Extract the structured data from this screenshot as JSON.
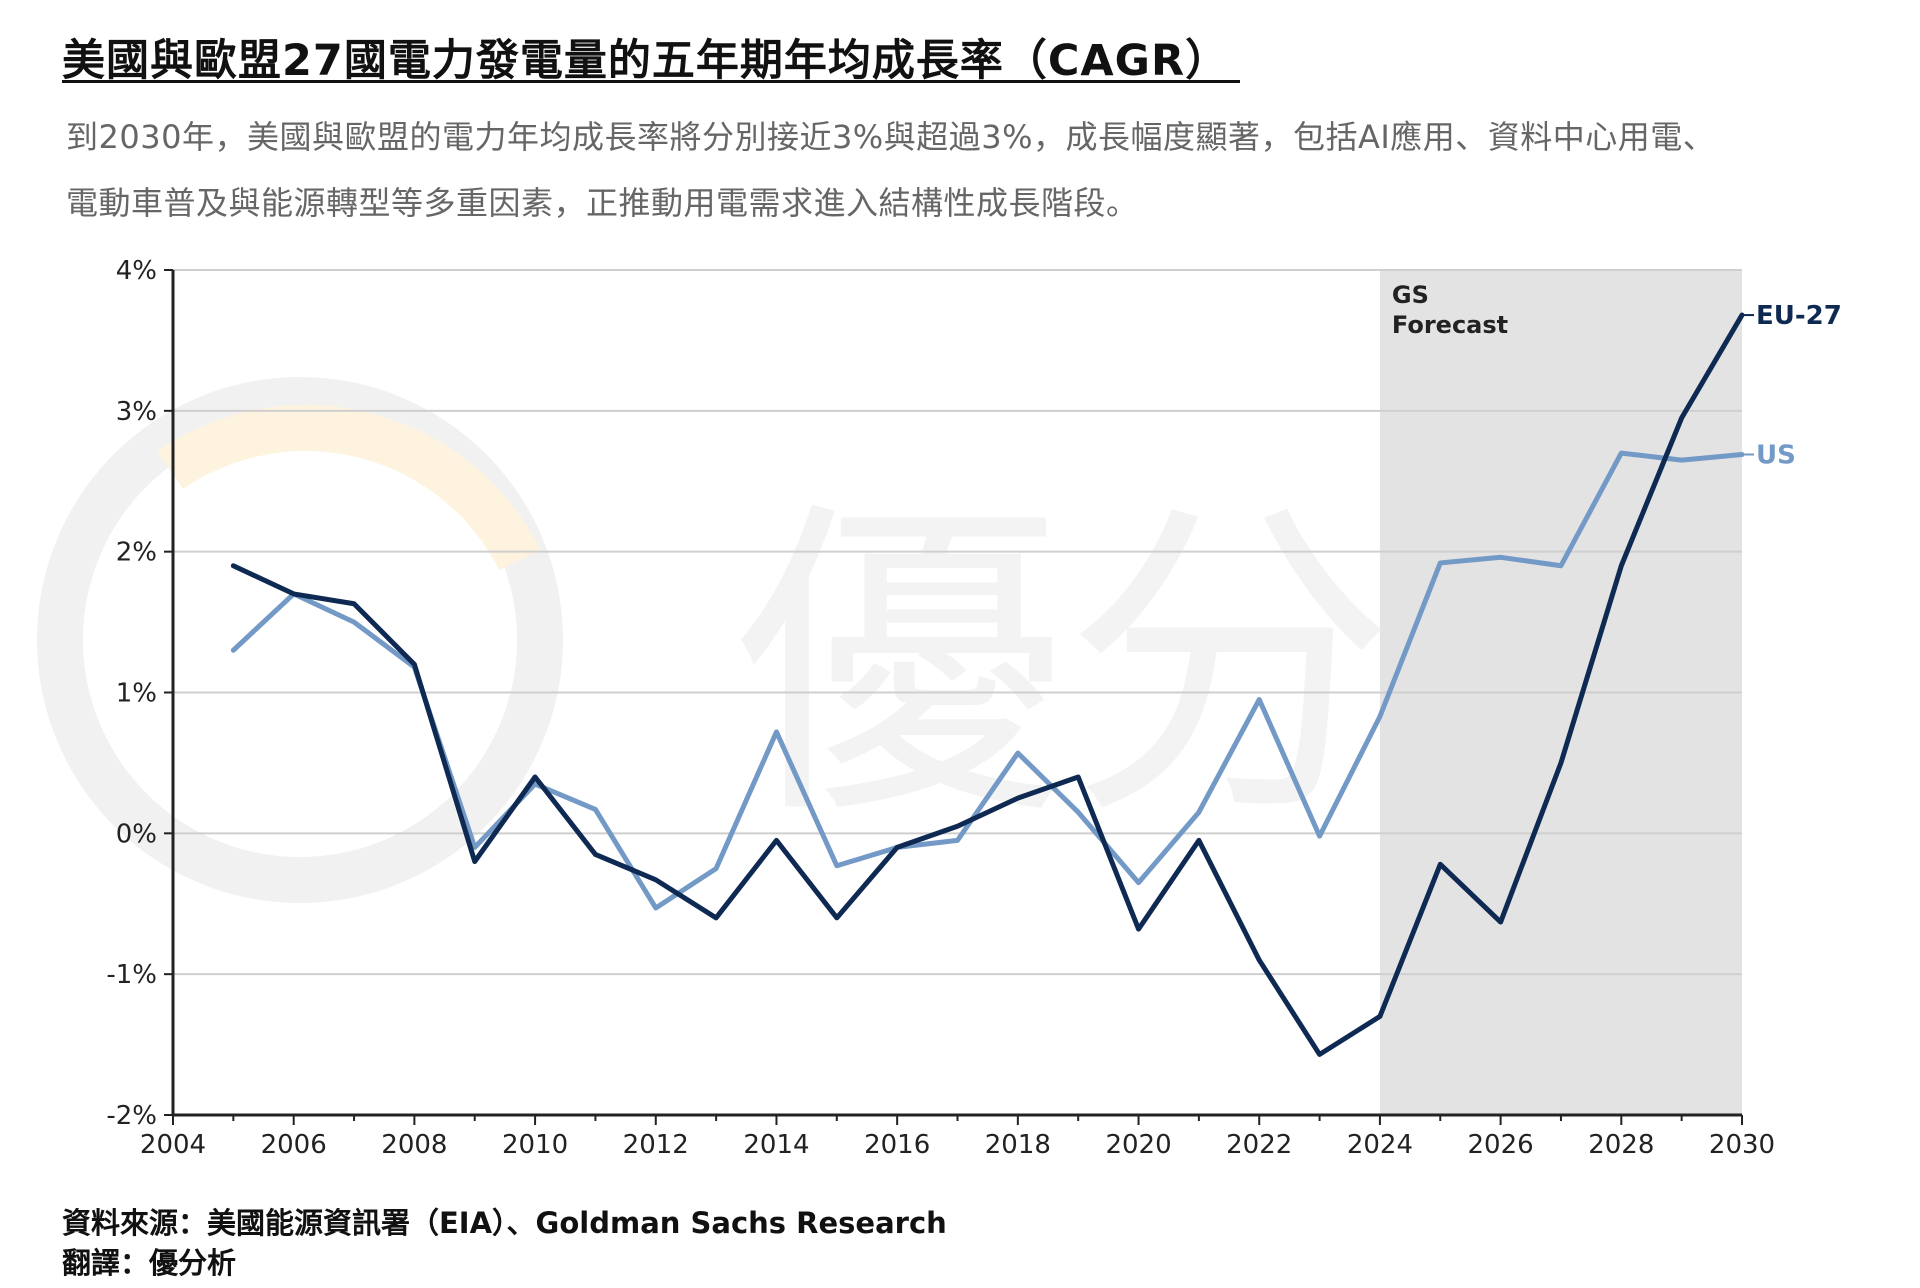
{
  "header": {
    "title": "美國與歐盟27國電力發電量的五年期年均成長率（CAGR）",
    "subtitle_lines": [
      "到2030年，美國與歐盟的電力年均成長率將分別接近3%與超過3%，成長幅度顯著，包括AI應用、資料中心用電、",
      "電動車普及與能源轉型等多重因素，正推動用電需求進入結構性成長階段。"
    ]
  },
  "watermark": {
    "text": "優分析"
  },
  "footer": {
    "source": "資料來源：美國能源資訊署（EIA）、Goldman Sachs Research",
    "translation": "翻譯：優分析"
  },
  "colors": {
    "eu": "#0f2a52",
    "us": "#7399c6",
    "forecast_band": "#e3e3e3",
    "grid": "#cfcfcf",
    "watermark": "#f3f3f3"
  },
  "chart_data": {
    "type": "line",
    "x_ticks": [
      2004,
      2006,
      2008,
      2010,
      2012,
      2014,
      2016,
      2018,
      2020,
      2022,
      2024,
      2026,
      2028,
      2030
    ],
    "y_ticks": [
      -2,
      -1,
      0,
      1,
      2,
      3,
      4
    ],
    "y_tick_labels": [
      "-2%",
      "-1%",
      "0%",
      "1%",
      "2%",
      "3%",
      "4%"
    ],
    "xlim": [
      2004,
      2030
    ],
    "ylim": [
      -2,
      4
    ],
    "grid": "horizontal",
    "forecast": {
      "label_lines": [
        "GS",
        "Forecast"
      ],
      "x_start": 2024,
      "x_end": 2030
    },
    "series": [
      {
        "name": "EU-27",
        "color": "#0f2a52",
        "x": [
          2005,
          2006,
          2007,
          2008,
          2009,
          2010,
          2011,
          2012,
          2013,
          2014,
          2015,
          2016,
          2017,
          2018,
          2019,
          2020,
          2021,
          2022,
          2023,
          2024,
          2025,
          2026,
          2027,
          2028,
          2029,
          2030
        ],
        "values": [
          1.9,
          1.7,
          1.63,
          1.2,
          -0.2,
          0.4,
          -0.15,
          -0.33,
          -0.6,
          -0.05,
          -0.6,
          -0.1,
          0.05,
          0.25,
          0.4,
          -0.68,
          -0.05,
          -0.9,
          -1.57,
          -1.3,
          -0.22,
          -0.63,
          0.5,
          1.9,
          2.95,
          3.68
        ]
      },
      {
        "name": "US",
        "color": "#7399c6",
        "x": [
          2005,
          2006,
          2007,
          2008,
          2009,
          2010,
          2011,
          2012,
          2013,
          2014,
          2015,
          2016,
          2017,
          2018,
          2019,
          2020,
          2021,
          2022,
          2023,
          2024,
          2025,
          2026,
          2027,
          2028,
          2029,
          2030
        ],
        "values": [
          1.3,
          1.7,
          1.5,
          1.18,
          -0.1,
          0.35,
          0.17,
          -0.53,
          -0.25,
          0.72,
          -0.23,
          -0.1,
          -0.05,
          0.57,
          0.15,
          -0.35,
          0.15,
          0.95,
          -0.02,
          0.83,
          1.92,
          1.96,
          1.9,
          2.7,
          2.65,
          2.69
        ]
      }
    ]
  }
}
